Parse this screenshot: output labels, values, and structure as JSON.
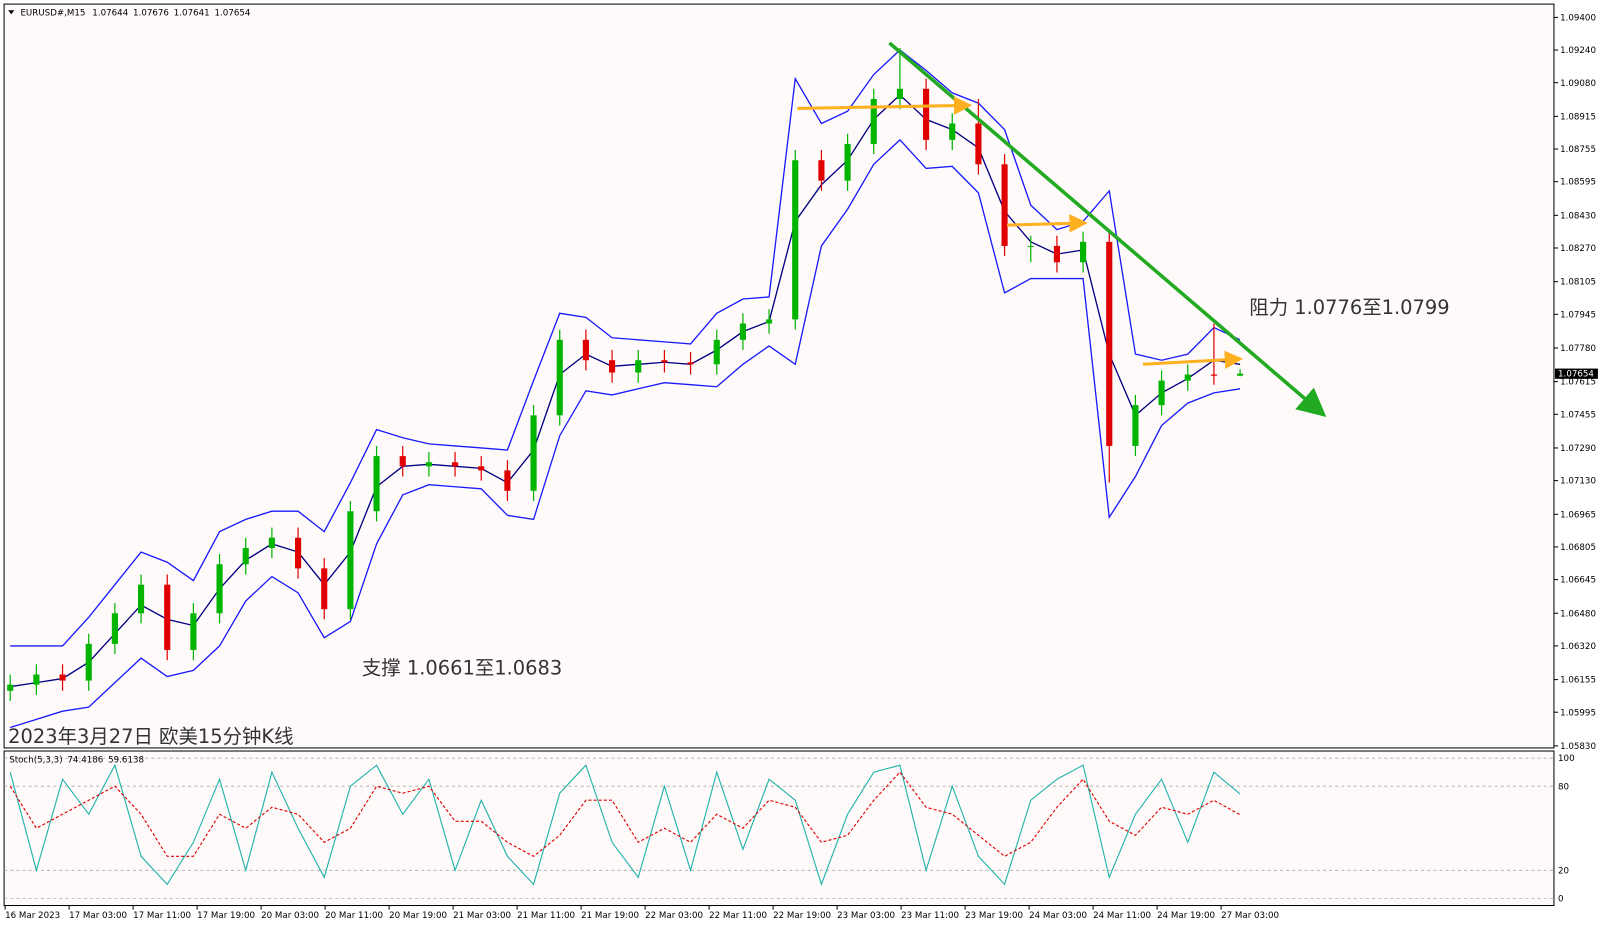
{
  "chart_data": {
    "type": "candlestick",
    "title": "EURUSD#,M15",
    "open": [
      1.061,
      1.0613,
      1.0618,
      1.0615,
      1.0633,
      1.0648,
      1.0662,
      1.063,
      1.0648,
      1.0672,
      1.068,
      1.0685,
      1.067,
      1.065,
      1.0698,
      1.0725,
      1.072,
      1.0722,
      1.072,
      1.0718,
      1.0708,
      1.0745,
      1.0782,
      1.0772,
      1.0766,
      1.0772,
      1.0771,
      1.077,
      1.0782,
      1.079,
      1.0792,
      1.087,
      1.086,
      1.0878,
      1.09,
      1.0905,
      1.088,
      1.0888,
      1.0868,
      1.0828,
      1.0828,
      1.082,
      1.083,
      1.073,
      1.075,
      1.0762,
      1.0765,
      1.07644
    ],
    "high": [
      1.0618,
      1.0623,
      1.0623,
      1.0638,
      1.0653,
      1.0667,
      1.0667,
      1.0653,
      1.0677,
      1.0685,
      1.069,
      1.069,
      1.0675,
      1.0703,
      1.073,
      1.073,
      1.0727,
      1.0727,
      1.0725,
      1.0723,
      1.075,
      1.0787,
      1.0787,
      1.0777,
      1.0777,
      1.0777,
      1.0776,
      1.0787,
      1.0795,
      1.0797,
      1.0875,
      1.0875,
      1.0883,
      1.0905,
      1.0925,
      1.091,
      1.0893,
      1.09,
      1.0873,
      1.0833,
      1.0833,
      1.0835,
      1.0835,
      1.0755,
      1.0767,
      1.077,
      1.079,
      1.07676
    ],
    "low": [
      1.0605,
      1.0608,
      1.061,
      1.061,
      1.0628,
      1.0643,
      1.0625,
      1.0625,
      1.0643,
      1.0667,
      1.0675,
      1.0665,
      1.0645,
      1.0645,
      1.0693,
      1.0715,
      1.0715,
      1.0715,
      1.0713,
      1.0703,
      1.0703,
      1.074,
      1.0767,
      1.0761,
      1.0761,
      1.0766,
      1.0765,
      1.0765,
      1.0777,
      1.0785,
      1.0787,
      1.0855,
      1.0855,
      1.0873,
      1.0895,
      1.0875,
      1.0875,
      1.0863,
      1.0823,
      1.082,
      1.0815,
      1.0815,
      1.0712,
      1.0725,
      1.0745,
      1.0757,
      1.076,
      1.07641
    ],
    "close": [
      1.0613,
      1.0618,
      1.0615,
      1.0633,
      1.0648,
      1.0662,
      1.063,
      1.0648,
      1.0672,
      1.068,
      1.0685,
      1.067,
      1.065,
      1.0698,
      1.0725,
      1.072,
      1.0722,
      1.072,
      1.0718,
      1.0708,
      1.0745,
      1.0782,
      1.0772,
      1.0766,
      1.0772,
      1.0771,
      1.077,
      1.0782,
      1.079,
      1.0792,
      1.087,
      1.086,
      1.0878,
      1.09,
      1.0905,
      1.088,
      1.0888,
      1.0868,
      1.0828,
      1.0828,
      1.082,
      1.083,
      1.073,
      1.075,
      1.0762,
      1.0765,
      1.07644,
      1.07654
    ],
    "bands_upper": [
      1.0632,
      1.0632,
      1.0632,
      1.0646,
      1.0662,
      1.0678,
      1.0673,
      1.0664,
      1.0688,
      1.0694,
      1.0698,
      1.0698,
      1.0688,
      1.0712,
      1.0738,
      1.0734,
      1.0731,
      1.073,
      1.0729,
      1.0728,
      1.0762,
      1.0795,
      1.0793,
      1.0783,
      1.0782,
      1.0781,
      1.078,
      1.0795,
      1.0802,
      1.0803,
      1.091,
      1.0888,
      1.0894,
      1.0912,
      1.0924,
      1.0914,
      1.0903,
      1.0898,
      1.0885,
      1.0848,
      1.0836,
      1.084,
      1.0855,
      1.0775,
      1.0772,
      1.0775,
      1.0788,
      1.0782
    ],
    "bands_middle": [
      1.0612,
      1.0614,
      1.0616,
      1.0624,
      1.0638,
      1.0652,
      1.0645,
      1.0642,
      1.066,
      1.0674,
      1.0682,
      1.0678,
      1.0662,
      1.0678,
      1.071,
      1.072,
      1.0721,
      1.072,
      1.0719,
      1.0712,
      1.0728,
      1.0765,
      1.0775,
      1.0769,
      1.077,
      1.0771,
      1.077,
      1.0777,
      1.0786,
      1.0791,
      1.084,
      1.0858,
      1.087,
      1.089,
      1.0902,
      1.089,
      1.0885,
      1.0876,
      1.0845,
      1.083,
      1.0824,
      1.0826,
      1.0775,
      1.0745,
      1.0756,
      1.0763,
      1.0772,
      1.077
    ],
    "bands_lower": [
      1.0592,
      1.0596,
      1.06,
      1.0602,
      1.0614,
      1.0626,
      1.0617,
      1.062,
      1.0632,
      1.0654,
      1.0666,
      1.0658,
      1.0636,
      1.0644,
      1.0682,
      1.0706,
      1.0711,
      1.071,
      1.0709,
      1.0696,
      1.0694,
      1.0735,
      1.0757,
      1.0755,
      1.0758,
      1.0761,
      1.076,
      1.0759,
      1.077,
      1.0779,
      1.077,
      1.0828,
      1.0846,
      1.0868,
      1.088,
      1.0866,
      1.0867,
      1.0854,
      1.0805,
      1.0812,
      1.0812,
      1.0812,
      1.0695,
      1.0715,
      1.074,
      1.0751,
      1.0756,
      1.0758
    ],
    "up_color": "#00b400",
    "down_color": "#e00000",
    "band_color": "#1a1aff",
    "middle_color": "#000080",
    "ylim": [
      1.0583,
      1.094
    ],
    "yticks": [
      {
        "value": 1.094,
        "label": "1.09400"
      },
      {
        "value": 1.0924,
        "label": "1.09240"
      },
      {
        "value": 1.0908,
        "label": "1.09080"
      },
      1.08915,
      1.08755,
      1.08595,
      {
        "value": 1.0843,
        "label": "1.08430"
      },
      {
        "value": 1.0827,
        "label": "1.08270"
      },
      1.08105,
      1.07945,
      {
        "value": 1.0778,
        "label": "1.07780"
      },
      1.07615,
      1.07455,
      {
        "value": 1.0729,
        "label": "1.07290"
      },
      {
        "value": 1.0713,
        "label": "1.07130"
      },
      1.06965,
      1.06805,
      1.06645,
      {
        "value": 1.0648,
        "label": "1.06480"
      },
      {
        "value": 1.0632,
        "label": "1.06320"
      },
      1.06155,
      1.05995,
      {
        "value": 1.0583,
        "label": "1.05830"
      }
    ],
    "time_labels": [
      "16 Mar 2023",
      "17 Mar 03:00",
      "17 Mar 11:00",
      "17 Mar 19:00",
      "20 Mar 03:00",
      "20 Mar 11:00",
      "20 Mar 19:00",
      "21 Mar 03:00",
      "21 Mar 11:00",
      "21 Mar 19:00",
      "22 Mar 03:00",
      "22 Mar 11:00",
      "22 Mar 19:00",
      "23 Mar 03:00",
      "23 Mar 11:00",
      "23 Mar 19:00",
      "24 Mar 03:00",
      "24 Mar 11:00",
      "24 Mar 19:00",
      "27 Mar 03:00"
    ],
    "annotations": [
      "阻力 1.0776至1.0799",
      "支撑 1.0661至1.0683",
      "2023年3月27日 欧美15分钟K线"
    ],
    "stochastic": {
      "title": "Stoch(5,3,3)",
      "k": [
        90,
        20,
        85,
        60,
        95,
        30,
        10,
        40,
        85,
        20,
        90,
        50,
        15,
        80,
        95,
        60,
        85,
        20,
        70,
        30,
        10,
        75,
        95,
        40,
        15,
        80,
        20,
        90,
        35,
        85,
        70,
        10,
        60,
        90,
        95,
        20,
        80,
        30,
        10,
        70,
        85,
        95,
        15,
        60,
        85,
        40,
        90,
        74.4186
      ],
      "d": [
        80,
        50,
        60,
        70,
        80,
        60,
        30,
        30,
        60,
        50,
        65,
        60,
        40,
        50,
        80,
        75,
        80,
        55,
        55,
        40,
        30,
        45,
        70,
        70,
        40,
        50,
        40,
        60,
        50,
        70,
        65,
        40,
        45,
        70,
        90,
        65,
        60,
        45,
        30,
        40,
        65,
        85,
        55,
        45,
        65,
        60,
        70,
        59.6138
      ],
      "k_color": "#20b2aa",
      "d_color": "#e00000",
      "ylim": [
        0,
        100
      ],
      "yticks": [
        100,
        80,
        20,
        0
      ]
    }
  }
}
